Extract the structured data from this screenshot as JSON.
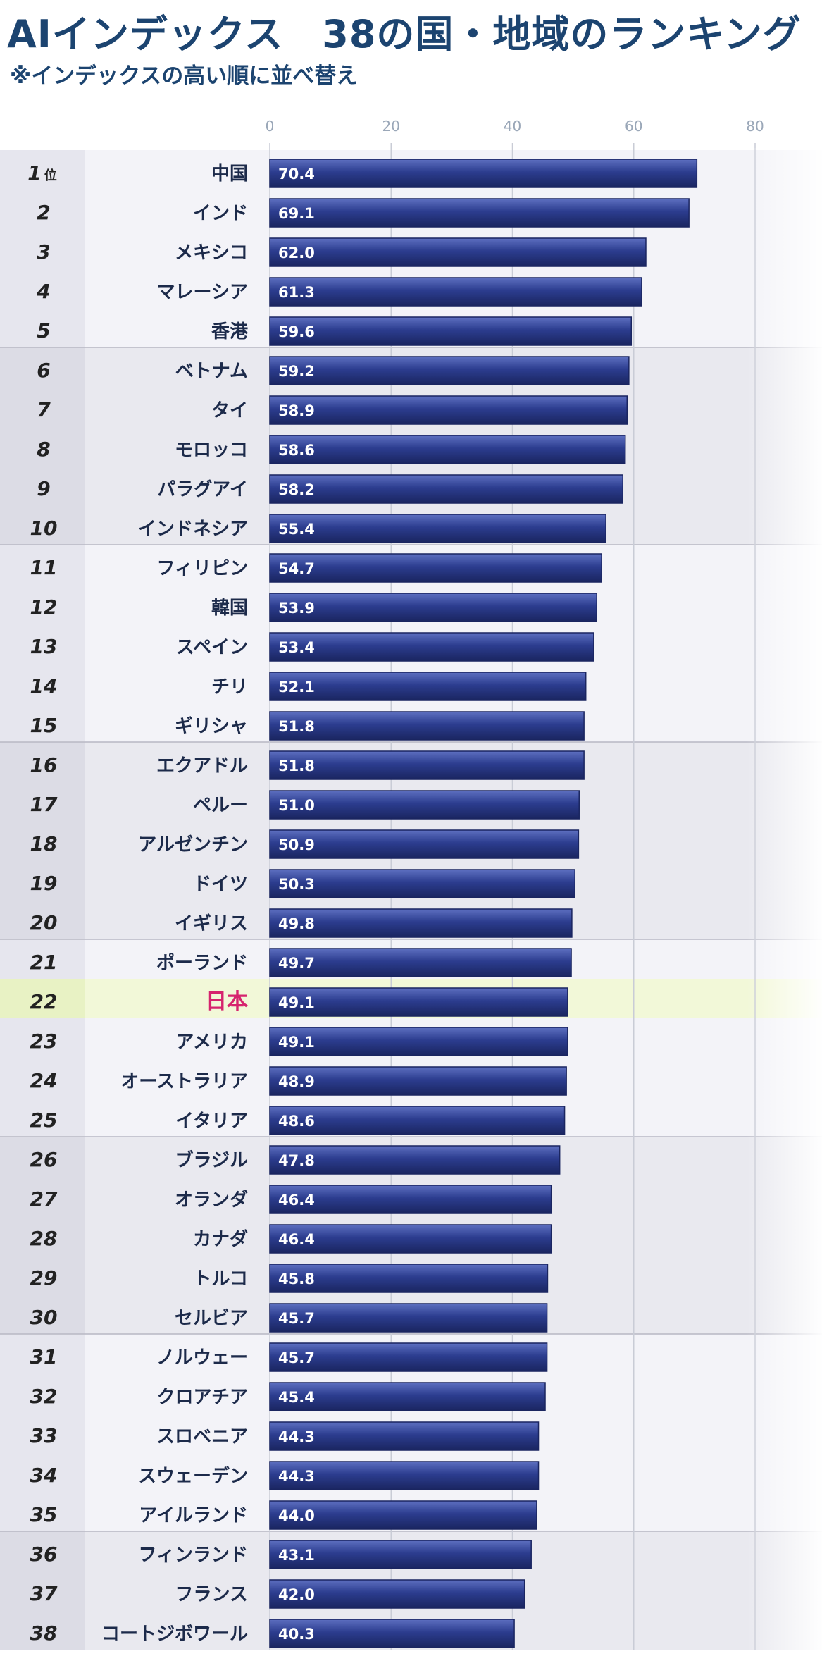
{
  "title": "AIインデックス　38の国・地域のランキング",
  "subtitle": "※インデックスの高い順に並べ替え",
  "colors": {
    "bar": "#2c3d8f",
    "bar_light": "#5d6fc0",
    "bar_dark": "#1a2560",
    "highlight_text": "#d6246e",
    "highlight_row": "#f2f8d8",
    "title": "#1c4470"
  },
  "chart_data": {
    "type": "bar",
    "orientation": "horizontal",
    "xlim": [
      0,
      80
    ],
    "ticks": [
      "0",
      "20",
      "40",
      "60",
      "80"
    ],
    "rank_suffix": "位",
    "highlight": "日本",
    "categories": [
      "中国",
      "インド",
      "メキシコ",
      "マレーシア",
      "香港",
      "ベトナム",
      "タイ",
      "モロッコ",
      "パラグアイ",
      "インドネシア",
      "フィリピン",
      "韓国",
      "スペイン",
      "チリ",
      "ギリシャ",
      "エクアドル",
      "ペルー",
      "アルゼンチン",
      "ドイツ",
      "イギリス",
      "ポーランド",
      "日本",
      "アメリカ",
      "オーストラリア",
      "イタリア",
      "ブラジル",
      "オランダ",
      "カナダ",
      "トルコ",
      "セルビア",
      "ノルウェー",
      "クロアチア",
      "スロベニア",
      "スウェーデン",
      "アイルランド",
      "フィンランド",
      "フランス",
      "コートジボワール"
    ],
    "ranks": [
      "1",
      "2",
      "3",
      "4",
      "5",
      "6",
      "7",
      "8",
      "9",
      "10",
      "11",
      "12",
      "13",
      "14",
      "15",
      "16",
      "17",
      "18",
      "19",
      "20",
      "21",
      "22",
      "23",
      "24",
      "25",
      "26",
      "27",
      "28",
      "29",
      "30",
      "31",
      "32",
      "33",
      "34",
      "35",
      "36",
      "37",
      "38"
    ],
    "values": [
      70.4,
      69.1,
      62.0,
      61.3,
      59.6,
      59.2,
      58.9,
      58.6,
      58.2,
      55.4,
      54.7,
      53.9,
      53.4,
      52.1,
      51.8,
      51.8,
      51.0,
      50.9,
      50.3,
      49.8,
      49.7,
      49.1,
      49.1,
      48.9,
      48.6,
      47.8,
      46.4,
      46.4,
      45.8,
      45.7,
      45.7,
      45.4,
      44.3,
      44.3,
      44.0,
      43.1,
      42.0,
      40.3
    ],
    "value_labels": [
      "70.4",
      "69.1",
      "62.0",
      "61.3",
      "59.6",
      "59.2",
      "58.9",
      "58.6",
      "58.2",
      "55.4",
      "54.7",
      "53.9",
      "53.4",
      "52.1",
      "51.8",
      "51.8",
      "51.0",
      "50.9",
      "50.3",
      "49.8",
      "49.7",
      "49.1",
      "49.1",
      "48.9",
      "48.6",
      "47.8",
      "46.4",
      "46.4",
      "45.8",
      "45.7",
      "45.7",
      "45.4",
      "44.3",
      "44.3",
      "44.0",
      "43.1",
      "42.0",
      "40.3"
    ]
  }
}
